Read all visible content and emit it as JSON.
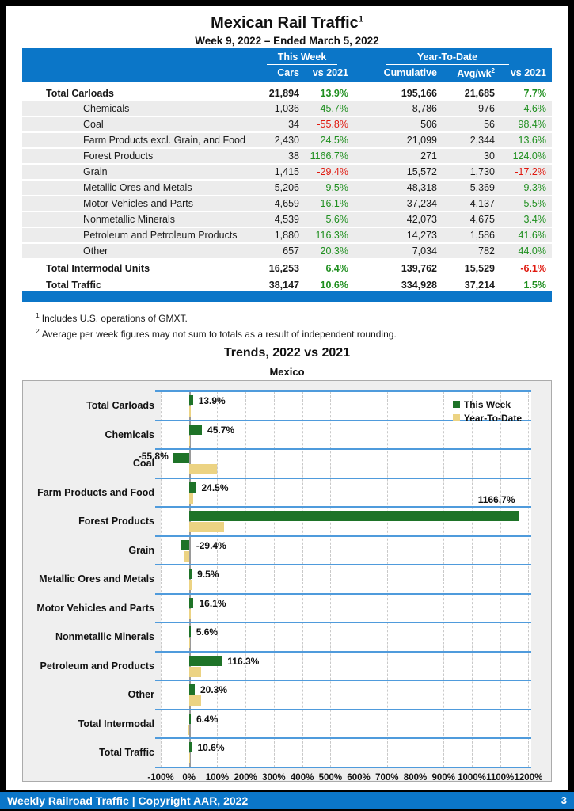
{
  "page": {
    "title": "Mexican Rail Traffic",
    "title_sup": "1",
    "subtitle": "Week 9, 2022 – Ended March 5, 2022",
    "footnotes": [
      {
        "marker": "1",
        "text": "Includes U.S. operations of GMXT."
      },
      {
        "marker": "2",
        "text": "Average per week figures may not sum to totals as a result of independent rounding."
      }
    ],
    "footer": {
      "left": "Weekly Railroad Traffic | Copyright AAR, 2022",
      "page_number": "3"
    }
  },
  "colors": {
    "header_blue": "#0b76c8",
    "positive_green": "#1f8f1f",
    "negative_red": "#e0190f",
    "bar_green": "#1e7328",
    "bar_tan": "#ecd383",
    "band_line_blue": "#4f9bdc"
  },
  "table": {
    "group_this_week": "This Week",
    "group_ytd": "Year-To-Date",
    "headers": {
      "cars": "Cars",
      "vs_this_week": "vs 2021",
      "cumulative": "Cumulative",
      "avg_wk": "Avg/wk",
      "avg_wk_sup": "2",
      "vs_ytd": "vs 2021"
    },
    "rows": [
      {
        "label": "Total Carloads",
        "style": "total",
        "cars": "21,894",
        "vs": "13.9%",
        "cumulative": "195,166",
        "avg": "21,685",
        "ytd_vs": "7.7%"
      },
      {
        "label": "Chemicals",
        "style": "sub",
        "cars": "1,036",
        "vs": "45.7%",
        "cumulative": "8,786",
        "avg": "976",
        "ytd_vs": "4.6%"
      },
      {
        "label": "Coal",
        "style": "sub",
        "cars": "34",
        "vs": "-55.8%",
        "cumulative": "506",
        "avg": "56",
        "ytd_vs": "98.4%"
      },
      {
        "label": "Farm Products excl. Grain, and Food",
        "style": "sub",
        "cars": "2,430",
        "vs": "24.5%",
        "cumulative": "21,099",
        "avg": "2,344",
        "ytd_vs": "13.6%"
      },
      {
        "label": "Forest Products",
        "style": "sub",
        "cars": "38",
        "vs": "1166.7%",
        "cumulative": "271",
        "avg": "30",
        "ytd_vs": "124.0%"
      },
      {
        "label": "Grain",
        "style": "sub",
        "cars": "1,415",
        "vs": "-29.4%",
        "cumulative": "15,572",
        "avg": "1,730",
        "ytd_vs": "-17.2%"
      },
      {
        "label": "Metallic Ores and Metals",
        "style": "sub",
        "cars": "5,206",
        "vs": "9.5%",
        "cumulative": "48,318",
        "avg": "5,369",
        "ytd_vs": "9.3%"
      },
      {
        "label": "Motor Vehicles and Parts",
        "style": "sub",
        "cars": "4,659",
        "vs": "16.1%",
        "cumulative": "37,234",
        "avg": "4,137",
        "ytd_vs": "5.5%"
      },
      {
        "label": "Nonmetallic Minerals",
        "style": "sub",
        "cars": "4,539",
        "vs": "5.6%",
        "cumulative": "42,073",
        "avg": "4,675",
        "ytd_vs": "3.4%"
      },
      {
        "label": "Petroleum and Petroleum Products",
        "style": "sub",
        "cars": "1,880",
        "vs": "116.3%",
        "cumulative": "14,273",
        "avg": "1,586",
        "ytd_vs": "41.6%"
      },
      {
        "label": "Other",
        "style": "sub",
        "cars": "657",
        "vs": "20.3%",
        "cumulative": "7,034",
        "avg": "782",
        "ytd_vs": "44.0%"
      },
      {
        "label": "Total Intermodal Units",
        "style": "total",
        "cars": "16,253",
        "vs": "6.4%",
        "cumulative": "139,762",
        "avg": "15,529",
        "ytd_vs": "-6.1%"
      },
      {
        "label": "Total Traffic",
        "style": "total",
        "cars": "38,147",
        "vs": "10.6%",
        "cumulative": "334,928",
        "avg": "37,214",
        "ytd_vs": "1.5%"
      }
    ]
  },
  "chart_data": {
    "type": "bar",
    "orientation": "horizontal",
    "title": "Trends, 2022 vs 2021",
    "subtitle": "Mexico",
    "categories": [
      "Total Carloads",
      "Chemicals",
      "Coal",
      "Farm Products and Food",
      "Forest Products",
      "Grain",
      "Metallic Ores and Metals",
      "Motor Vehicles and Parts",
      "Nonmetallic Minerals",
      "Petroleum and Products",
      "Other",
      "Total Intermodal",
      "Total Traffic"
    ],
    "series": [
      {
        "name": "This Week",
        "color": "#1e7328",
        "values": [
          13.9,
          45.7,
          -55.8,
          24.5,
          1166.7,
          -29.4,
          9.5,
          16.1,
          5.6,
          116.3,
          20.3,
          6.4,
          10.6
        ]
      },
      {
        "name": "Year-To-Date",
        "color": "#ecd383",
        "values": [
          7.7,
          4.6,
          98.4,
          13.6,
          124.0,
          -17.2,
          9.3,
          5.5,
          3.4,
          41.6,
          44.0,
          -6.1,
          1.5
        ]
      }
    ],
    "value_labels": [
      "13.9%",
      "45.7%",
      "-55.8%",
      "24.5%",
      "1166.7%",
      "-29.4%",
      "9.5%",
      "16.1%",
      "5.6%",
      "116.3%",
      "20.3%",
      "6.4%",
      "10.6%"
    ],
    "label_placements": [
      "right",
      "right",
      "left",
      "right",
      "above",
      "axis",
      "right",
      "right",
      "right",
      "right",
      "right",
      "right",
      "right"
    ],
    "xlim": [
      -100,
      1210
    ],
    "xticks": [
      -100,
      0,
      100,
      200,
      300,
      400,
      500,
      600,
      700,
      800,
      900,
      1000,
      1100,
      1200
    ],
    "xtick_labels": [
      "-100%",
      "0%",
      "100%",
      "200%",
      "300%",
      "400%",
      "500%",
      "600%",
      "700%",
      "800%",
      "900%",
      "1000%",
      "1100%",
      "1200%"
    ],
    "grid": "dashed-vertical",
    "legend_position": "top-right-inside"
  }
}
